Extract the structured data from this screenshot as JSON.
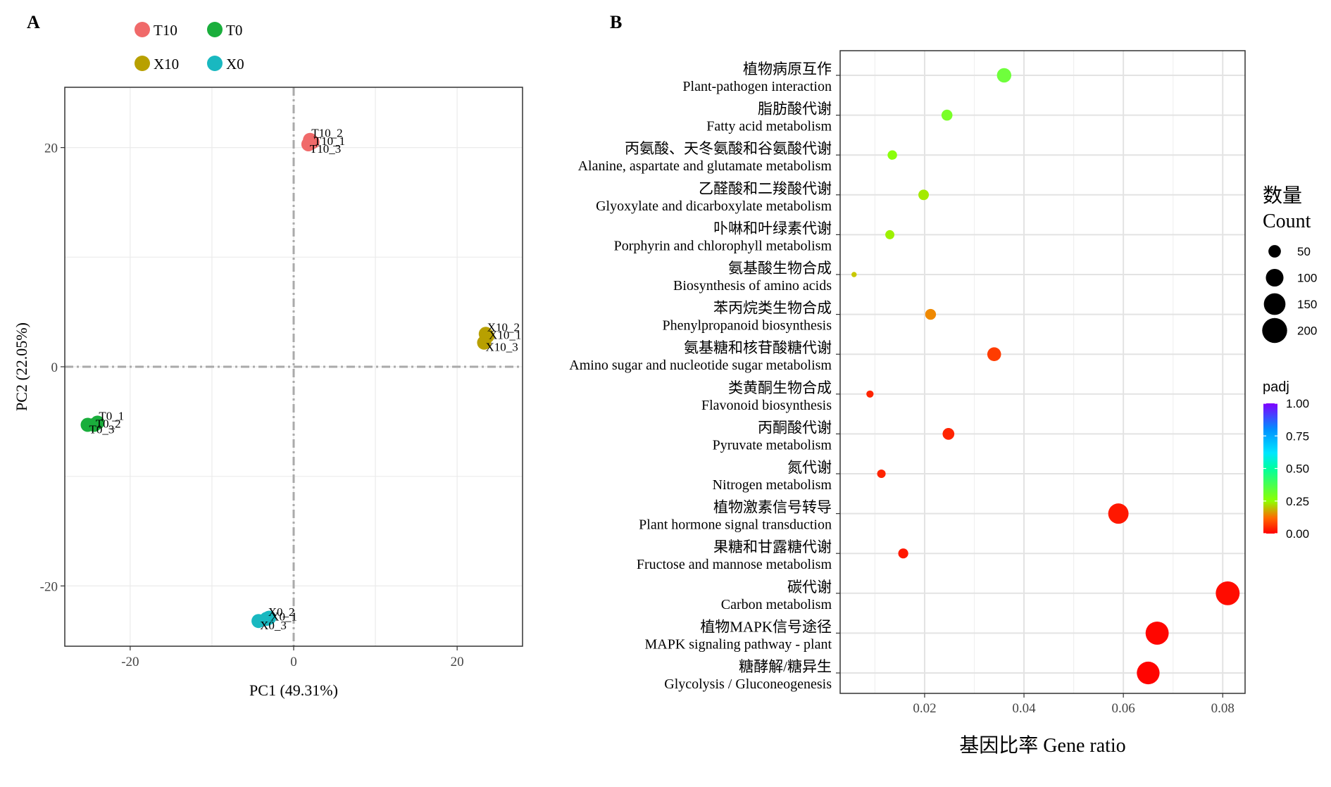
{
  "panel_a": {
    "panel_label": "A",
    "legend": [
      {
        "name": "T10",
        "color": "#F06A6A"
      },
      {
        "name": "T0",
        "color": "#1AAE3C"
      },
      {
        "name": "X10",
        "color": "#B8A000"
      },
      {
        "name": "X0",
        "color": "#19B8C0"
      }
    ]
  },
  "panel_b": {
    "panel_label": "B",
    "size_legend_title_cn": "数量",
    "size_legend_title_en": "Count",
    "color_legend_title": "padj"
  },
  "chart_data": [
    {
      "type": "scatter",
      "title": "",
      "xlabel": "PC1 (49.31%)",
      "ylabel": "PC2 (22.05%)",
      "xlim": [
        -28,
        28
      ],
      "ylim": [
        -25.5,
        25.5
      ],
      "xticks": [
        -20,
        0,
        20
      ],
      "yticks": [
        -20,
        0,
        20
      ],
      "grid": true,
      "reference_lines": {
        "x": 0,
        "y": 0,
        "style": "dash-dot"
      },
      "legend_position": "top",
      "series": [
        {
          "name": "T10",
          "color": "#F06A6A",
          "points": [
            {
              "label": "T10_2",
              "x": 2.0,
              "y": 20.7
            },
            {
              "label": "T10_1",
              "x": 2.3,
              "y": 20.5
            },
            {
              "label": "T10_3",
              "x": 1.8,
              "y": 20.3
            }
          ]
        },
        {
          "name": "T0",
          "color": "#1AAE3C",
          "points": [
            {
              "label": "T0_1",
              "x": -24.0,
              "y": -5.1
            },
            {
              "label": "T0_2",
              "x": -24.4,
              "y": -5.3
            },
            {
              "label": "T0_3",
              "x": -25.2,
              "y": -5.3
            }
          ]
        },
        {
          "name": "X10",
          "color": "#B8A000",
          "points": [
            {
              "label": "X10_2",
              "x": 23.5,
              "y": 3.0
            },
            {
              "label": "X10_1",
              "x": 23.7,
              "y": 2.8
            },
            {
              "label": "X10_3",
              "x": 23.3,
              "y": 2.2
            }
          ]
        },
        {
          "name": "X0",
          "color": "#19B8C0",
          "points": [
            {
              "label": "X0_2",
              "x": -3.3,
              "y": -23.0
            },
            {
              "label": "X0_1",
              "x": -3.0,
              "y": -22.9
            },
            {
              "label": "X0_3",
              "x": -4.3,
              "y": -23.2
            }
          ]
        }
      ]
    },
    {
      "type": "scatter",
      "title": "",
      "xlabel": "基因比率 Gene ratio",
      "ylabel": "",
      "xlim": [
        0.003,
        0.0845
      ],
      "xticks": [
        0.02,
        0.04,
        0.06,
        0.08
      ],
      "xtick_labels": [
        "0.02",
        "0.04",
        "0.06",
        "0.08"
      ],
      "grid": true,
      "legend_position": "right",
      "size_legend": {
        "title": "数量 Count",
        "values": [
          50,
          100,
          150,
          200
        ]
      },
      "color_legend": {
        "title": "padj",
        "range": [
          0,
          1
        ],
        "ticks": [
          "0.00",
          "0.25",
          "0.50",
          "0.75",
          "1.00"
        ]
      },
      "categories": [
        {
          "cn": "植物病原互作",
          "en": "Plant-pathogen interaction",
          "gene_ratio": 0.036,
          "count": 60,
          "padj": 0.36
        },
        {
          "cn": "脂肪酸代谢",
          "en": "Fatty acid metabolism",
          "gene_ratio": 0.0245,
          "count": 35,
          "padj": 0.34
        },
        {
          "cn": "丙氨酸、天冬氨酸和谷氨酸代谢",
          "en": "Alanine, aspartate and glutamate metabolism",
          "gene_ratio": 0.0135,
          "count": 26,
          "padj": 0.31
        },
        {
          "cn": "乙醛酸和二羧酸代谢",
          "en": "Glyoxylate and dicarboxylate metabolism",
          "gene_ratio": 0.0198,
          "count": 32,
          "padj": 0.27
        },
        {
          "cn": "卟啉和叶绿素代谢",
          "en": "Porphyrin and chlorophyll metabolism",
          "gene_ratio": 0.013,
          "count": 24,
          "padj": 0.28
        },
        {
          "cn": "氨基酸生物合成",
          "en": "Biosynthesis of amino acids",
          "gene_ratio": 0.0058,
          "count": 8,
          "padj": 0.22
        },
        {
          "cn": "苯丙烷类生物合成",
          "en": "Phenylpropanoid biosynthesis",
          "gene_ratio": 0.0212,
          "count": 34,
          "padj": 0.15
        },
        {
          "cn": "氨基糖和核苷酸糖代谢",
          "en": "Amino sugar and nucleotide sugar metabolism",
          "gene_ratio": 0.034,
          "count": 55,
          "padj": 0.05
        },
        {
          "cn": "类黄酮生物合成",
          "en": "Flavonoid biosynthesis",
          "gene_ratio": 0.009,
          "count": 15,
          "padj": 0.03
        },
        {
          "cn": "丙酮酸代谢",
          "en": "Pyruvate metabolism",
          "gene_ratio": 0.0248,
          "count": 40,
          "padj": 0.03
        },
        {
          "cn": "氮代谢",
          "en": "Nitrogen metabolism",
          "gene_ratio": 0.0113,
          "count": 21,
          "padj": 0.03
        },
        {
          "cn": "植物激素信号转导",
          "en": "Plant hormone signal transduction",
          "gene_ratio": 0.059,
          "count": 120,
          "padj": 0.02
        },
        {
          "cn": "果糖和甘露糖代谢",
          "en": "Fructose and mannose metabolism",
          "gene_ratio": 0.0157,
          "count": 29,
          "padj": 0.02
        },
        {
          "cn": "碳代谢",
          "en": "Carbon metabolism",
          "gene_ratio": 0.081,
          "count": 165,
          "padj": 0.01
        },
        {
          "cn": "植物MAPK信号途径",
          "en": "MAPK signaling pathway - plant",
          "gene_ratio": 0.0668,
          "count": 155,
          "padj": 0.005
        },
        {
          "cn": "糖酵解/糖异生",
          "en": "Glycolysis / Gluconeogenesis",
          "gene_ratio": 0.065,
          "count": 150,
          "padj": 0.003
        }
      ]
    }
  ]
}
